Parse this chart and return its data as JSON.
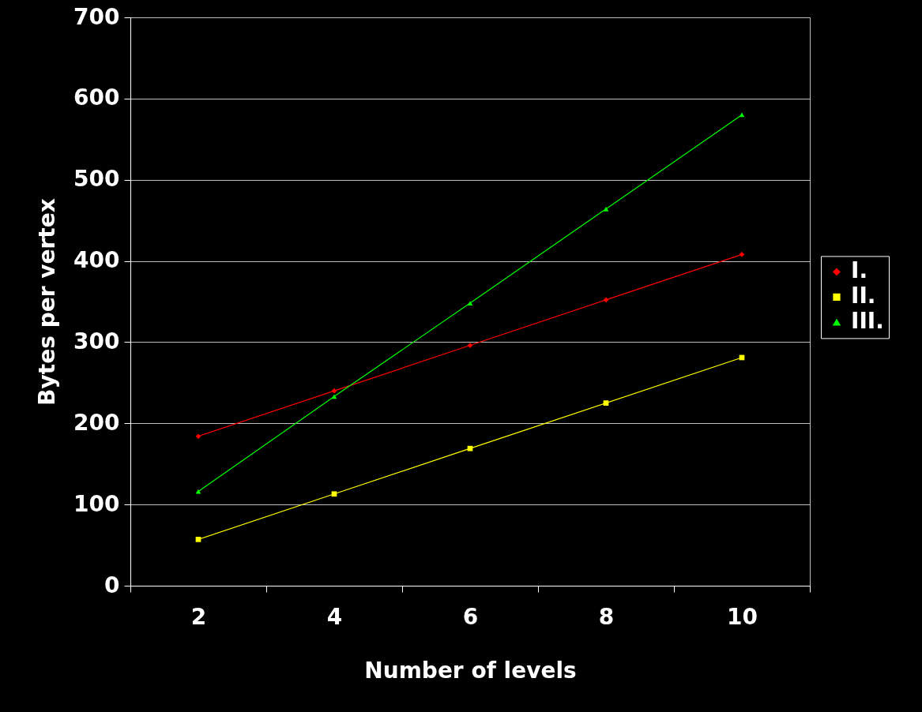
{
  "chart_data": {
    "type": "line",
    "xlabel": "Number of levels",
    "ylabel": "Bytes per vertex",
    "categories": [
      "2",
      "4",
      "6",
      "8",
      "10"
    ],
    "ylim": [
      0,
      700
    ],
    "yticks": [
      0,
      100,
      200,
      300,
      400,
      500,
      600,
      700
    ],
    "grid": "y",
    "legend": "right",
    "series": [
      {
        "name": "I.",
        "color": "#ff0000",
        "marker": "diamond",
        "values": [
          184,
          240,
          296,
          352,
          408
        ]
      },
      {
        "name": "II.",
        "color": "#ffff00",
        "marker": "square",
        "values": [
          57,
          113,
          169,
          225,
          281
        ]
      },
      {
        "name": "III.",
        "color": "#00ff00",
        "marker": "triangle",
        "values": [
          116,
          233,
          348,
          464,
          580
        ]
      }
    ]
  }
}
